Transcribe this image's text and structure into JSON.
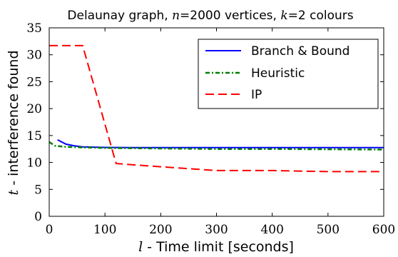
{
  "chart_data": {
    "type": "line",
    "title_parts": {
      "prefix": "Delaunay graph, ",
      "n_symbol": "n",
      "n_text": "=2000 vertices, ",
      "k_symbol": "k",
      "k_text": "=2 colours"
    },
    "xlabel_parts": {
      "symbol": "l",
      "text": " - Time limit [seconds]"
    },
    "ylabel_parts": {
      "symbol": "t",
      "text": " - interference found"
    },
    "xlim": [
      0,
      600
    ],
    "ylim": [
      0,
      35
    ],
    "xticks": [
      0,
      100,
      200,
      300,
      400,
      500,
      600
    ],
    "yticks": [
      0,
      5,
      10,
      15,
      20,
      25,
      30,
      35
    ],
    "grid": false,
    "legend_position": "upper-right",
    "series": [
      {
        "name": "Branch & Bound",
        "color": "#0000ff",
        "style": "solid",
        "x": [
          15,
          30,
          45,
          60,
          80,
          100,
          150,
          200,
          300,
          400,
          500,
          600
        ],
        "y": [
          14.2,
          13.4,
          13.1,
          12.9,
          12.85,
          12.8,
          12.75,
          12.75,
          12.75,
          12.75,
          12.75,
          12.75
        ]
      },
      {
        "name": "Heuristic",
        "color": "#008000",
        "style": "dashdot",
        "x": [
          0,
          10,
          30,
          60,
          100,
          200,
          300,
          400,
          500,
          600
        ],
        "y": [
          13.8,
          13.1,
          12.9,
          12.8,
          12.7,
          12.6,
          12.5,
          12.5,
          12.45,
          12.4
        ]
      },
      {
        "name": "IP",
        "color": "#ff0000",
        "style": "dashed",
        "x": [
          0,
          60,
          120,
          200,
          300,
          400,
          500,
          600
        ],
        "y": [
          31.7,
          31.7,
          9.8,
          9.2,
          8.5,
          8.5,
          8.3,
          8.3
        ]
      }
    ]
  }
}
